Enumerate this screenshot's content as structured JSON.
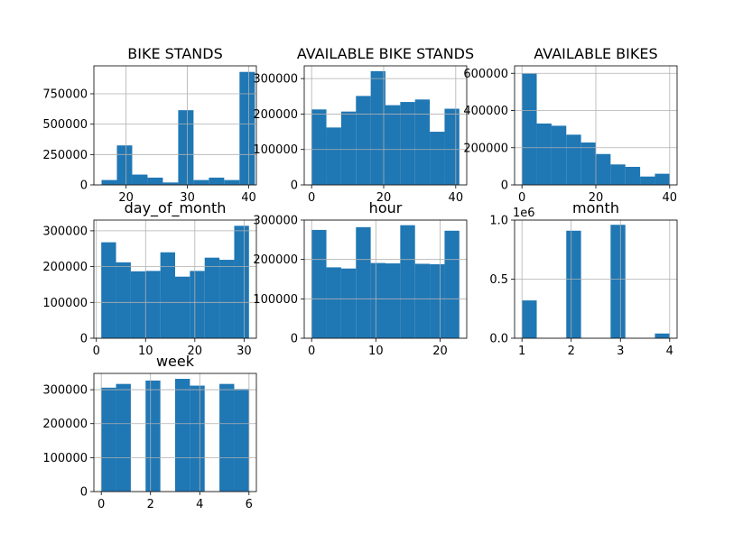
{
  "figure": {
    "background": "#ffffff",
    "bar_color": "#1f77b4",
    "grid": true
  },
  "chart_data": [
    {
      "type": "bar",
      "title": "BIKE STANDS",
      "xlim": [
        14.75,
        41.25
      ],
      "ylim": [
        0,
        980000
      ],
      "x_ticks": [
        20,
        30,
        40
      ],
      "y_ticks": [
        0,
        250000,
        500000,
        750000
      ],
      "bin_edges": [
        16,
        18.5,
        21,
        23.5,
        26,
        28.5,
        31,
        33.5,
        36,
        38.5,
        41
      ],
      "values": [
        40000,
        325000,
        85000,
        60000,
        20000,
        615000,
        40000,
        60000,
        40000,
        930000
      ]
    },
    {
      "type": "bar",
      "title": "AVAILABLE BIKE STANDS",
      "xlim": [
        -2.05,
        43.05
      ],
      "ylim": [
        0,
        336000
      ],
      "x_ticks": [
        0,
        20,
        40
      ],
      "y_ticks": [
        0,
        100000,
        200000,
        300000
      ],
      "bin_edges": [
        0,
        4.1,
        8.2,
        12.3,
        16.4,
        20.5,
        24.6,
        28.7,
        32.8,
        36.9,
        41
      ],
      "values": [
        213000,
        162000,
        207000,
        251000,
        321000,
        225000,
        234000,
        241000,
        150000,
        215000
      ]
    },
    {
      "type": "bar",
      "title": "AVAILABLE BIKES",
      "xlim": [
        -2,
        42
      ],
      "ylim": [
        0,
        640000
      ],
      "x_ticks": [
        0,
        20,
        40
      ],
      "y_ticks": [
        0,
        200000,
        400000,
        600000
      ],
      "bin_edges": [
        0,
        4,
        8,
        12,
        16,
        20,
        24,
        28,
        32,
        36,
        40
      ],
      "values": [
        598000,
        330000,
        318000,
        270000,
        228000,
        166000,
        110000,
        97000,
        45000,
        60000
      ]
    },
    {
      "type": "bar",
      "title": "day_of_month",
      "xlim": [
        -0.5,
        32.5
      ],
      "ylim": [
        0,
        330000
      ],
      "x_ticks": [
        0,
        10,
        20,
        30
      ],
      "y_ticks": [
        0,
        100000,
        200000,
        300000
      ],
      "bin_edges": [
        1,
        4,
        7,
        10,
        13,
        16,
        19,
        22,
        25,
        28,
        31
      ],
      "values": [
        268000,
        212000,
        187000,
        188000,
        240000,
        172000,
        188000,
        225000,
        219000,
        314000
      ]
    },
    {
      "type": "bar",
      "title": "hour",
      "xlim": [
        -1.15,
        24.15
      ],
      "ylim": [
        0,
        300000
      ],
      "x_ticks": [
        0,
        10,
        20
      ],
      "y_ticks": [
        0,
        100000,
        200000,
        300000
      ],
      "bin_edges": [
        0,
        2.3,
        4.6,
        6.9,
        9.2,
        11.5,
        13.8,
        16.1,
        18.4,
        20.7,
        23
      ],
      "values": [
        275000,
        180000,
        177000,
        282000,
        191000,
        190000,
        287000,
        189000,
        188000,
        273000
      ]
    },
    {
      "type": "bar",
      "title": "month",
      "offset_label": "1e6",
      "xlim": [
        0.85,
        4.15
      ],
      "ylim": [
        0,
        1.0
      ],
      "x_ticks": [
        1,
        2,
        3,
        4
      ],
      "y_ticks": [
        0,
        0.5,
        1.0
      ],
      "y_tick_labels": [
        "0.0",
        "0.5",
        "1.0"
      ],
      "bin_edges": [
        1,
        1.3,
        1.6,
        1.9,
        2.2,
        2.5,
        2.8,
        3.1,
        3.4,
        3.7,
        4
      ],
      "values": [
        0.32,
        0,
        0,
        0.91,
        0,
        0,
        0.96,
        0,
        0,
        0.04
      ]
    },
    {
      "type": "bar",
      "title": "week",
      "xlim": [
        -0.3,
        6.3
      ],
      "ylim": [
        0,
        348000
      ],
      "x_ticks": [
        0,
        2,
        4,
        6
      ],
      "y_ticks": [
        0,
        100000,
        200000,
        300000
      ],
      "bin_edges": [
        0,
        0.6,
        1.2,
        1.8,
        2.4,
        3.0,
        3.6,
        4.2,
        4.8,
        5.4,
        6
      ],
      "values": [
        306000,
        317000,
        0,
        327000,
        0,
        332000,
        312000,
        0,
        317000,
        302000
      ]
    }
  ]
}
